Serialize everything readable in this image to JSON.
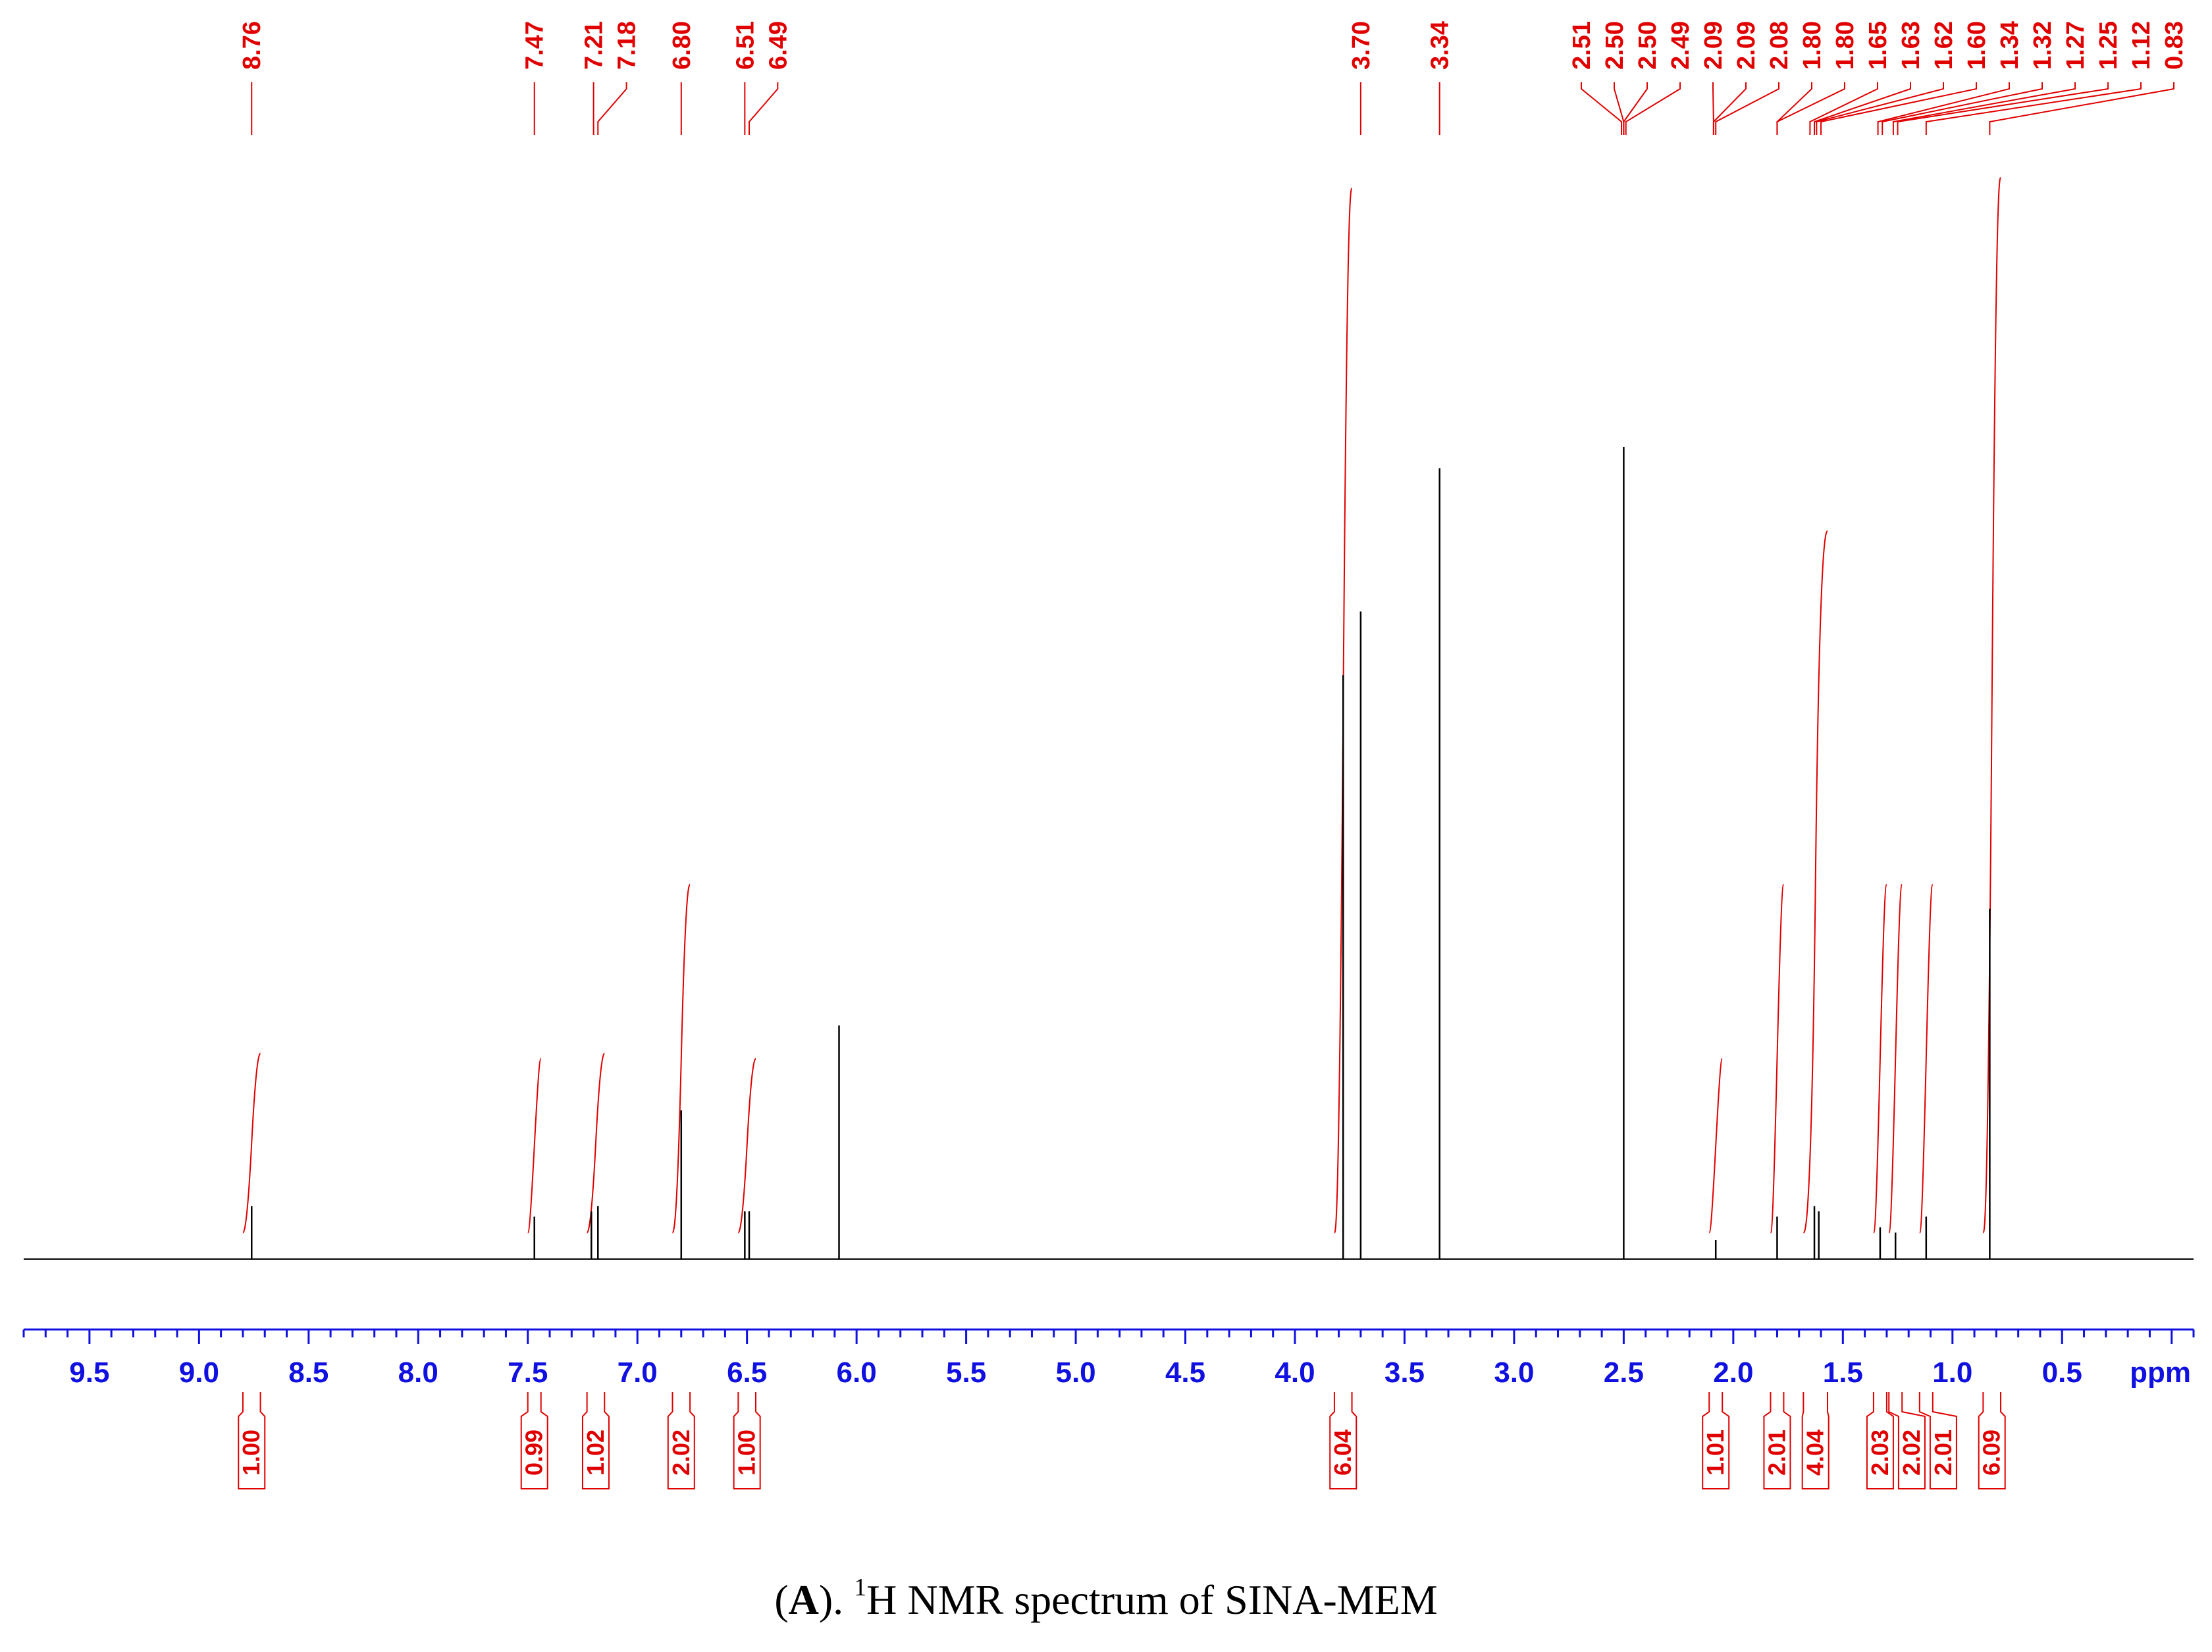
{
  "chart_data": {
    "type": "line",
    "title": "",
    "xlabel": "ppm",
    "ylabel": "",
    "x_axis": {
      "min": 9.8,
      "max": -0.1,
      "reversed": true,
      "major_ticks": [
        9.5,
        9.0,
        8.5,
        8.0,
        7.5,
        7.0,
        6.5,
        6.0,
        5.5,
        5.0,
        4.5,
        4.0,
        3.5,
        3.0,
        2.5,
        2.0,
        1.5,
        1.0,
        0.5
      ],
      "tick_labels": [
        "9.5",
        "9.0",
        "8.5",
        "8.0",
        "7.5",
        "7.0",
        "6.5",
        "6.0",
        "5.5",
        "5.0",
        "4.5",
        "4.0",
        "3.5",
        "3.0",
        "2.5",
        "2.0",
        "1.5",
        "1.0",
        "0.5"
      ],
      "unit_label": "ppm"
    },
    "y_range": [
      0,
      1
    ],
    "grid": false,
    "colors": {
      "spectrum": "#000000",
      "peak_labels": "#e00000",
      "axis": "#1010e0"
    },
    "peaks": [
      {
        "ppm": 8.76,
        "height": 0.05
      },
      {
        "ppm": 7.47,
        "height": 0.04
      },
      {
        "ppm": 7.21,
        "height": 0.045
      },
      {
        "ppm": 7.18,
        "height": 0.05
      },
      {
        "ppm": 6.8,
        "height": 0.14
      },
      {
        "ppm": 6.51,
        "height": 0.045
      },
      {
        "ppm": 6.49,
        "height": 0.045
      },
      {
        "ppm": 6.08,
        "height": 0.22
      },
      {
        "ppm": 3.78,
        "height": 0.55
      },
      {
        "ppm": 3.7,
        "height": 0.61
      },
      {
        "ppm": 3.34,
        "height": 0.745
      },
      {
        "ppm": 2.5,
        "height": 0.765
      },
      {
        "ppm": 2.08,
        "height": 0.018
      },
      {
        "ppm": 1.8,
        "height": 0.04
      },
      {
        "ppm": 1.63,
        "height": 0.05
      },
      {
        "ppm": 1.61,
        "height": 0.045
      },
      {
        "ppm": 1.33,
        "height": 0.03
      },
      {
        "ppm": 1.26,
        "height": 0.025
      },
      {
        "ppm": 1.12,
        "height": 0.04
      },
      {
        "ppm": 0.83,
        "height": 0.33
      }
    ],
    "peak_labels": [
      "8.76",
      "7.47",
      "7.21",
      "7.18",
      "6.80",
      "6.51",
      "6.49",
      "3.70",
      "3.34",
      "2.51",
      "2.50",
      "2.50",
      "2.49",
      "2.09",
      "2.09",
      "2.08",
      "1.80",
      "1.80",
      "1.65",
      "1.63",
      "1.62",
      "1.60",
      "1.34",
      "1.32",
      "1.27",
      "1.25",
      "1.12",
      "0.83"
    ],
    "peak_label_ppm": [
      8.76,
      7.47,
      7.2,
      7.18,
      6.8,
      6.51,
      6.49,
      3.7,
      3.34,
      2.51,
      2.5,
      2.5,
      2.49,
      2.09,
      2.09,
      2.08,
      1.8,
      1.8,
      1.65,
      1.63,
      1.62,
      1.6,
      1.34,
      1.32,
      1.27,
      1.25,
      1.12,
      0.83
    ],
    "integrals": [
      {
        "label": "1.00",
        "from": 8.8,
        "to": 8.72,
        "rise": 0.17
      },
      {
        "label": "0.99",
        "from": 7.5,
        "to": 7.44,
        "rise": 0.165
      },
      {
        "label": "1.02",
        "from": 7.23,
        "to": 7.15,
        "rise": 0.17
      },
      {
        "label": "2.02",
        "from": 6.84,
        "to": 6.76,
        "rise": 0.33
      },
      {
        "label": "1.00",
        "from": 6.54,
        "to": 6.46,
        "rise": 0.165
      },
      {
        "label": "6.04",
        "from": 3.82,
        "to": 3.74,
        "rise": 0.99
      },
      {
        "label": "1.01",
        "from": 2.11,
        "to": 2.05,
        "rise": 0.165
      },
      {
        "label": "2.01",
        "from": 1.83,
        "to": 1.77,
        "rise": 0.33
      },
      {
        "label": "4.04",
        "from": 1.68,
        "to": 1.57,
        "rise": 0.665
      },
      {
        "label": "2.03",
        "from": 1.36,
        "to": 1.3,
        "rise": 0.33
      },
      {
        "label": "2.02",
        "from": 1.29,
        "to": 1.23,
        "rise": 0.33
      },
      {
        "label": "2.01",
        "from": 1.15,
        "to": 1.09,
        "rise": 0.33
      },
      {
        "label": "6.09",
        "from": 0.86,
        "to": 0.78,
        "rise": 1.0
      }
    ]
  },
  "caption": {
    "open": "(",
    "letter": "A",
    "rest": "). ",
    "superscript": "1",
    "text": "H NMR spectrum of SINA-MEM"
  }
}
